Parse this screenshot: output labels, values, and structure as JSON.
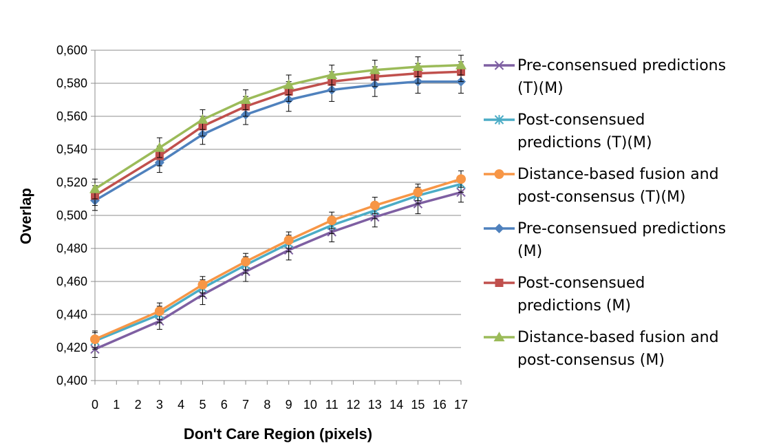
{
  "chart_data": {
    "type": "line",
    "title": "",
    "xlabel": "Don't Care Region (pixels)",
    "ylabel": "Overlap",
    "xlim": [
      0,
      17
    ],
    "ylim": [
      0.4,
      0.6
    ],
    "grid": "horizontal",
    "legend_position": "right",
    "x_ticks": [
      "0",
      "1",
      "2",
      "3",
      "4",
      "5",
      "6",
      "7",
      "8",
      "9",
      "10",
      "11",
      "12",
      "13",
      "14",
      "15",
      "16",
      "17"
    ],
    "y_ticks": [
      "0,400",
      "0,420",
      "0,440",
      "0,460",
      "0,480",
      "0,500",
      "0,520",
      "0,540",
      "0,560",
      "0,580",
      "0,600"
    ],
    "x": [
      0,
      3,
      5,
      7,
      9,
      11,
      13,
      15,
      17
    ],
    "series": [
      {
        "name": "Pre-consensued predictions (T)(M)",
        "legend_lines": [
          "Pre-consensued predictions",
          "(T)(M)"
        ],
        "color": "#7E5FA2",
        "marker": "x",
        "values": [
          0.419,
          0.436,
          0.452,
          0.466,
          0.479,
          0.49,
          0.499,
          0.507,
          0.514
        ],
        "errors": [
          0.005,
          0.005,
          0.006,
          0.006,
          0.006,
          0.006,
          0.006,
          0.006,
          0.006
        ]
      },
      {
        "name": "Post-consensued predictions (T)(M)",
        "legend_lines": [
          "Post-consensued",
          "predictions (T)(M)"
        ],
        "color": "#4BACC6",
        "marker": "asterisk",
        "values": [
          0.424,
          0.44,
          0.456,
          0.47,
          0.483,
          0.494,
          0.503,
          0.512,
          0.519
        ],
        "errors": [
          0.005,
          0.005,
          0.005,
          0.005,
          0.005,
          0.005,
          0.005,
          0.005,
          0.005
        ]
      },
      {
        "name": "Distance-based fusion and post-consensus (T)(M)",
        "legend_lines": [
          "Distance-based fusion and",
          "post-consensus (T)(M)"
        ],
        "color": "#F79646",
        "marker": "circle",
        "values": [
          0.425,
          0.442,
          0.458,
          0.472,
          0.485,
          0.497,
          0.506,
          0.514,
          0.522
        ],
        "errors": [
          0.005,
          0.005,
          0.005,
          0.005,
          0.005,
          0.005,
          0.005,
          0.005,
          0.005
        ]
      },
      {
        "name": "Pre-consensued predictions (M)",
        "legend_lines": [
          "Pre-consensued predictions",
          "(M)"
        ],
        "color": "#4F81BD",
        "marker": "diamond",
        "values": [
          0.509,
          0.532,
          0.549,
          0.561,
          0.57,
          0.576,
          0.579,
          0.581,
          0.581
        ],
        "errors": [
          0.006,
          0.006,
          0.006,
          0.006,
          0.007,
          0.007,
          0.007,
          0.007,
          0.007
        ]
      },
      {
        "name": "Post-consensued predictions (M)",
        "legend_lines": [
          "Post-consensued",
          "predictions (M)"
        ],
        "color": "#C0504D",
        "marker": "square",
        "values": [
          0.512,
          0.536,
          0.554,
          0.566,
          0.575,
          0.581,
          0.584,
          0.586,
          0.587
        ],
        "errors": [
          0.006,
          0.006,
          0.006,
          0.006,
          0.006,
          0.006,
          0.006,
          0.006,
          0.006
        ]
      },
      {
        "name": "Distance-based fusion and post-consensus (M)",
        "legend_lines": [
          "Distance-based fusion and",
          "post-consensus (M)"
        ],
        "color": "#9BBB59",
        "marker": "triangle",
        "values": [
          0.516,
          0.541,
          0.558,
          0.57,
          0.579,
          0.585,
          0.588,
          0.59,
          0.591
        ],
        "errors": [
          0.006,
          0.006,
          0.006,
          0.006,
          0.006,
          0.006,
          0.006,
          0.006,
          0.006
        ]
      }
    ]
  }
}
